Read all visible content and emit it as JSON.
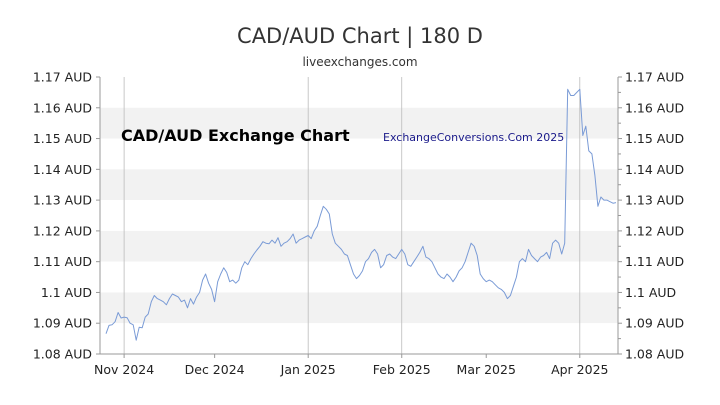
{
  "header": {
    "title": "CAD/AUD Chart | 180 D",
    "subtitle": "liveexchanges.com"
  },
  "chart_data": {
    "type": "line",
    "title": "CAD/AUD Exchange Chart",
    "watermark": "ExchangeConversions.Com 2025",
    "xlabel": "",
    "ylabel": "",
    "ylim": [
      1.08,
      1.17
    ],
    "y_ticks": [
      {
        "value": 1.17,
        "label": "1.17 AUD"
      },
      {
        "value": 1.16,
        "label": "1.16 AUD"
      },
      {
        "value": 1.15,
        "label": "1.15 AUD"
      },
      {
        "value": 1.14,
        "label": "1.14 AUD"
      },
      {
        "value": 1.13,
        "label": "1.13 AUD"
      },
      {
        "value": 1.12,
        "label": "1.12 AUD"
      },
      {
        "value": 1.11,
        "label": "1.11 AUD"
      },
      {
        "value": 1.1,
        "label": "1.1 AUD"
      },
      {
        "value": 1.09,
        "label": "1.09 AUD"
      },
      {
        "value": 1.08,
        "label": "1.08 AUD"
      }
    ],
    "x_ticks": [
      {
        "day": 6,
        "label": "Nov 2024",
        "gridline": true
      },
      {
        "day": 36,
        "label": "Dec 2024",
        "gridline": false
      },
      {
        "day": 67,
        "label": "Jan 2025",
        "gridline": true
      },
      {
        "day": 98,
        "label": "Feb 2025",
        "gridline": true
      },
      {
        "day": 126,
        "label": "Mar 2025",
        "gridline": false
      },
      {
        "day": 157,
        "label": "Apr 2025",
        "gridline": true
      }
    ],
    "band_colors": [
      "#f2f2f2",
      "#ffffff"
    ],
    "line_color": "#7a9bd6",
    "grid": true,
    "series": [
      {
        "values": [
          1.0866,
          1.0893,
          1.0895,
          1.0905,
          1.0935,
          1.0917,
          1.092,
          1.0918,
          1.09,
          1.0895,
          1.0845,
          1.0887,
          1.0885,
          1.092,
          1.093,
          1.097,
          1.099,
          1.098,
          1.0975,
          1.097,
          1.096,
          1.098,
          1.0995,
          1.099,
          1.0985,
          1.097,
          1.0975,
          1.095,
          1.098,
          1.0962,
          1.0985,
          1.1,
          1.104,
          1.106,
          1.103,
          1.101,
          1.097,
          1.1035,
          1.106,
          1.108,
          1.1065,
          1.1035,
          1.104,
          1.103,
          1.104,
          1.108,
          1.11,
          1.109,
          1.111,
          1.1125,
          1.1138,
          1.115,
          1.1165,
          1.116,
          1.1158,
          1.117,
          1.116,
          1.1178,
          1.115,
          1.116,
          1.1165,
          1.1175,
          1.119,
          1.116,
          1.117,
          1.1175,
          1.118,
          1.1185,
          1.1175,
          1.12,
          1.1215,
          1.125,
          1.128,
          1.127,
          1.1255,
          1.119,
          1.116,
          1.115,
          1.114,
          1.1125,
          1.112,
          1.109,
          1.106,
          1.1045,
          1.1055,
          1.107,
          1.11,
          1.111,
          1.113,
          1.114,
          1.1125,
          1.108,
          1.109,
          1.112,
          1.1125,
          1.1115,
          1.111,
          1.1125,
          1.114,
          1.1125,
          1.109,
          1.1085,
          1.11,
          1.1115,
          1.113,
          1.115,
          1.1115,
          1.111,
          1.11,
          1.108,
          1.106,
          1.105,
          1.1045,
          1.106,
          1.105,
          1.1035,
          1.105,
          1.107,
          1.108,
          1.11,
          1.113,
          1.116,
          1.115,
          1.112,
          1.106,
          1.1045,
          1.1035,
          1.104,
          1.1035,
          1.1025,
          1.1015,
          1.101,
          1.1,
          1.098,
          1.099,
          1.102,
          1.105,
          1.11,
          1.111,
          1.11,
          1.114,
          1.112,
          1.111,
          1.11,
          1.1115,
          1.112,
          1.113,
          1.111,
          1.116,
          1.117,
          1.116,
          1.1125,
          1.116,
          1.166,
          1.164,
          1.164,
          1.165,
          1.166,
          1.151,
          1.154,
          1.146,
          1.145,
          1.138,
          1.128,
          1.131,
          1.13,
          1.13,
          1.1295,
          1.129,
          1.1292
        ]
      }
    ]
  }
}
